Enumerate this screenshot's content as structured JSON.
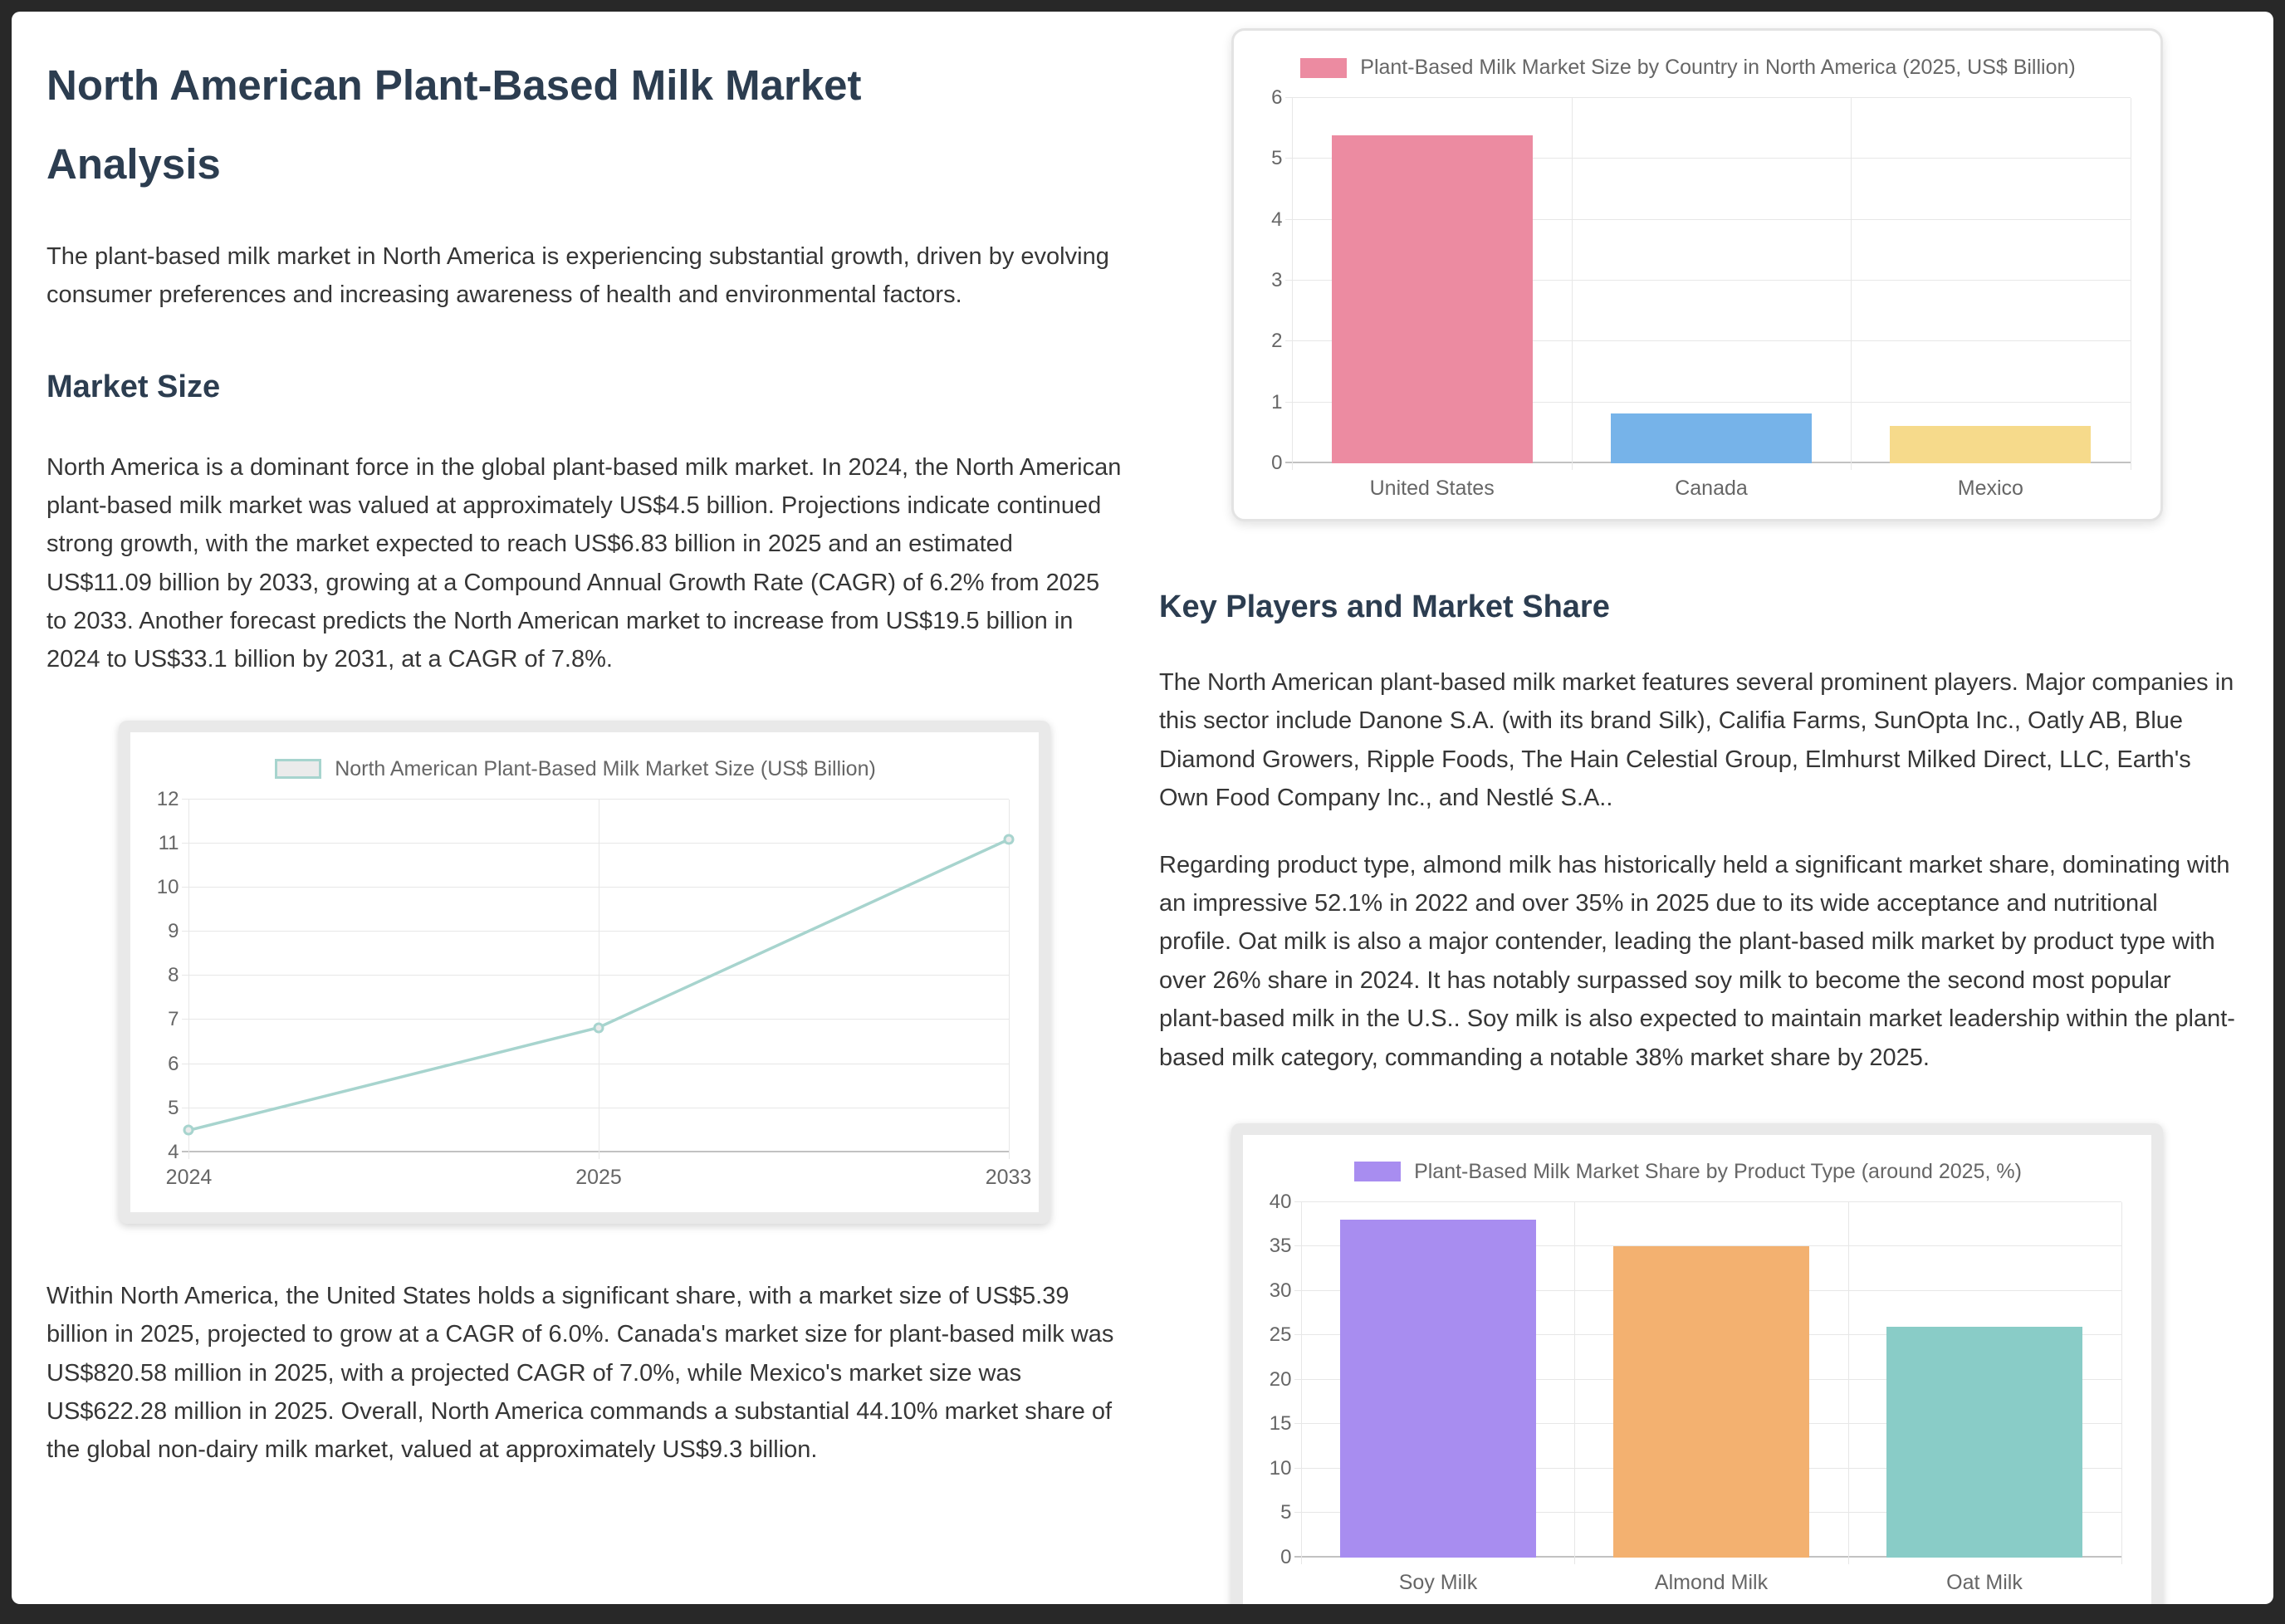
{
  "doc": {
    "title": "North American Plant-Based Milk Market Analysis",
    "intro": "The plant-based milk market in North America is experiencing substantial growth, driven by evolving consumer preferences and increasing awareness of health and environmental factors.",
    "market_size_heading": "Market Size",
    "market_size_p1": "North America is a dominant force in the global plant-based milk market. In 2024, the North American plant-based milk market was valued at approximately US$4.5 billion. Projections indicate continued strong growth, with the market expected to reach US$6.83 billion in 2025 and an estimated US$11.09 billion by 2033, growing at a Compound Annual Growth Rate (CAGR) of 6.2% from 2025 to 2033. Another forecast predicts the North American market to increase from US$19.5 billion in 2024 to US$33.1 billion by 2031, at a CAGR of 7.8%.",
    "market_size_p2": "Within North America, the United States holds a significant share, with a market size of US$5.39 billion in 2025, projected to grow at a CAGR of 6.0%. Canada's market size for plant-based milk was US$820.58 million in 2025, with a projected CAGR of 7.0%, while Mexico's market size was US$622.28 million in 2025. Overall, North America commands a substantial 44.10% market share of the global non-dairy milk market, valued at approximately US$9.3 billion.",
    "key_players_heading": "Key Players and Market Share",
    "key_players_p1": "The North American plant-based milk market features several prominent players. Major companies in this sector include Danone S.A. (with its brand Silk), Califia Farms, SunOpta Inc., Oatly AB, Blue Diamond Growers, Ripple Foods, The Hain Celestial Group, Elmhurst Milked Direct, LLC, Earth's Own Food Company Inc., and Nestlé S.A..",
    "key_players_p2": "Regarding product type, almond milk has historically held a significant market share, dominating with an impressive 52.1% in 2022 and over 35% in 2025 due to its wide acceptance and nutritional profile. Oat milk is also a major contender, leading the plant-based milk market by product type with over 26% share in 2024. It has notably surpassed soy milk to become the second most popular plant-based milk in the U.S.. Soy milk is also expected to maintain market leadership within the plant-based milk category, commanding a notable 38% market share by 2025."
  },
  "colors": {
    "page_background": "#282828",
    "card_background": "#ffffff",
    "heading": "#2c3d50",
    "body_text": "#363636",
    "chart_text": "#666666",
    "gridline": "#e7e7e7"
  },
  "chart_data": [
    {
      "id": "market-size-line",
      "type": "line",
      "title": "North American Plant-Based Milk Market Size (US$ Billion)",
      "categories": [
        "2024",
        "2025",
        "2033"
      ],
      "values": [
        4.5,
        6.83,
        11.09
      ],
      "xlabel": "",
      "ylabel": "US$ Billion",
      "ylim": [
        4,
        12
      ],
      "ytick_step": 1,
      "grid": true,
      "legend_position": "top",
      "line_color": "#a7d4ce",
      "legend_swatch": {
        "fill": "#ebebeb",
        "border": "#a7d4ce"
      }
    },
    {
      "id": "market-size-by-country-bar",
      "type": "bar",
      "title": "Plant-Based Milk Market Size by Country in North America (2025, US$ Billion)",
      "categories": [
        "United States",
        "Canada",
        "Mexico"
      ],
      "values": [
        5.39,
        0.82,
        0.62
      ],
      "xlabel": "",
      "ylabel": "US$ Billion",
      "ylim": [
        0,
        6
      ],
      "ytick_step": 1,
      "grid": true,
      "legend_position": "top",
      "bar_colors": [
        "#ec8ba1",
        "#76b3e9",
        "#f6da8b"
      ],
      "legend_swatch": {
        "fill": "#ec8ba1"
      }
    },
    {
      "id": "market-share-by-product-bar",
      "type": "bar",
      "title": "Plant-Based Milk Market Share by Product Type (around 2025, %)",
      "categories": [
        "Soy Milk",
        "Almond Milk",
        "Oat Milk"
      ],
      "values": [
        38,
        35,
        26
      ],
      "xlabel": "",
      "ylabel": "%",
      "ylim": [
        0,
        40
      ],
      "ytick_step": 5,
      "grid": true,
      "legend_position": "top",
      "bar_colors": [
        "#a88df0",
        "#f3b170",
        "#89ccc7"
      ],
      "legend_swatch": {
        "fill": "#a88df0"
      }
    }
  ]
}
